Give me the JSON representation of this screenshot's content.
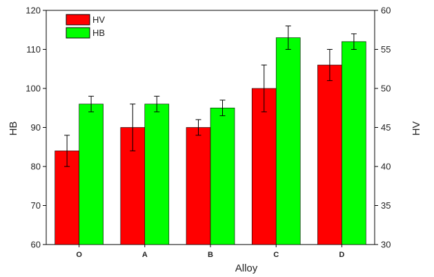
{
  "chart_data": {
    "type": "bar",
    "xlabel": "Alloy",
    "ylabel_left": "HB",
    "ylabel_right": "HV",
    "categories": [
      "O",
      "A",
      "B",
      "C",
      "D"
    ],
    "ylim_left": [
      60,
      120
    ],
    "ylim_right": [
      30,
      60
    ],
    "yticks_left": [
      60,
      70,
      80,
      90,
      100,
      110,
      120
    ],
    "yticks_right": [
      30,
      35,
      40,
      45,
      50,
      55,
      60
    ],
    "legend_position": "top-left",
    "grid": false,
    "series": [
      {
        "name": "HV",
        "axis": "right",
        "color": "#ff0000",
        "values": [
          42,
          45,
          45,
          50,
          53
        ],
        "errors": [
          2,
          3,
          1,
          3,
          2
        ]
      },
      {
        "name": "HB",
        "axis": "left",
        "color": "#00ff00",
        "values": [
          96,
          96,
          95,
          113,
          112
        ],
        "errors": [
          2,
          2,
          2,
          3,
          2
        ]
      }
    ]
  }
}
